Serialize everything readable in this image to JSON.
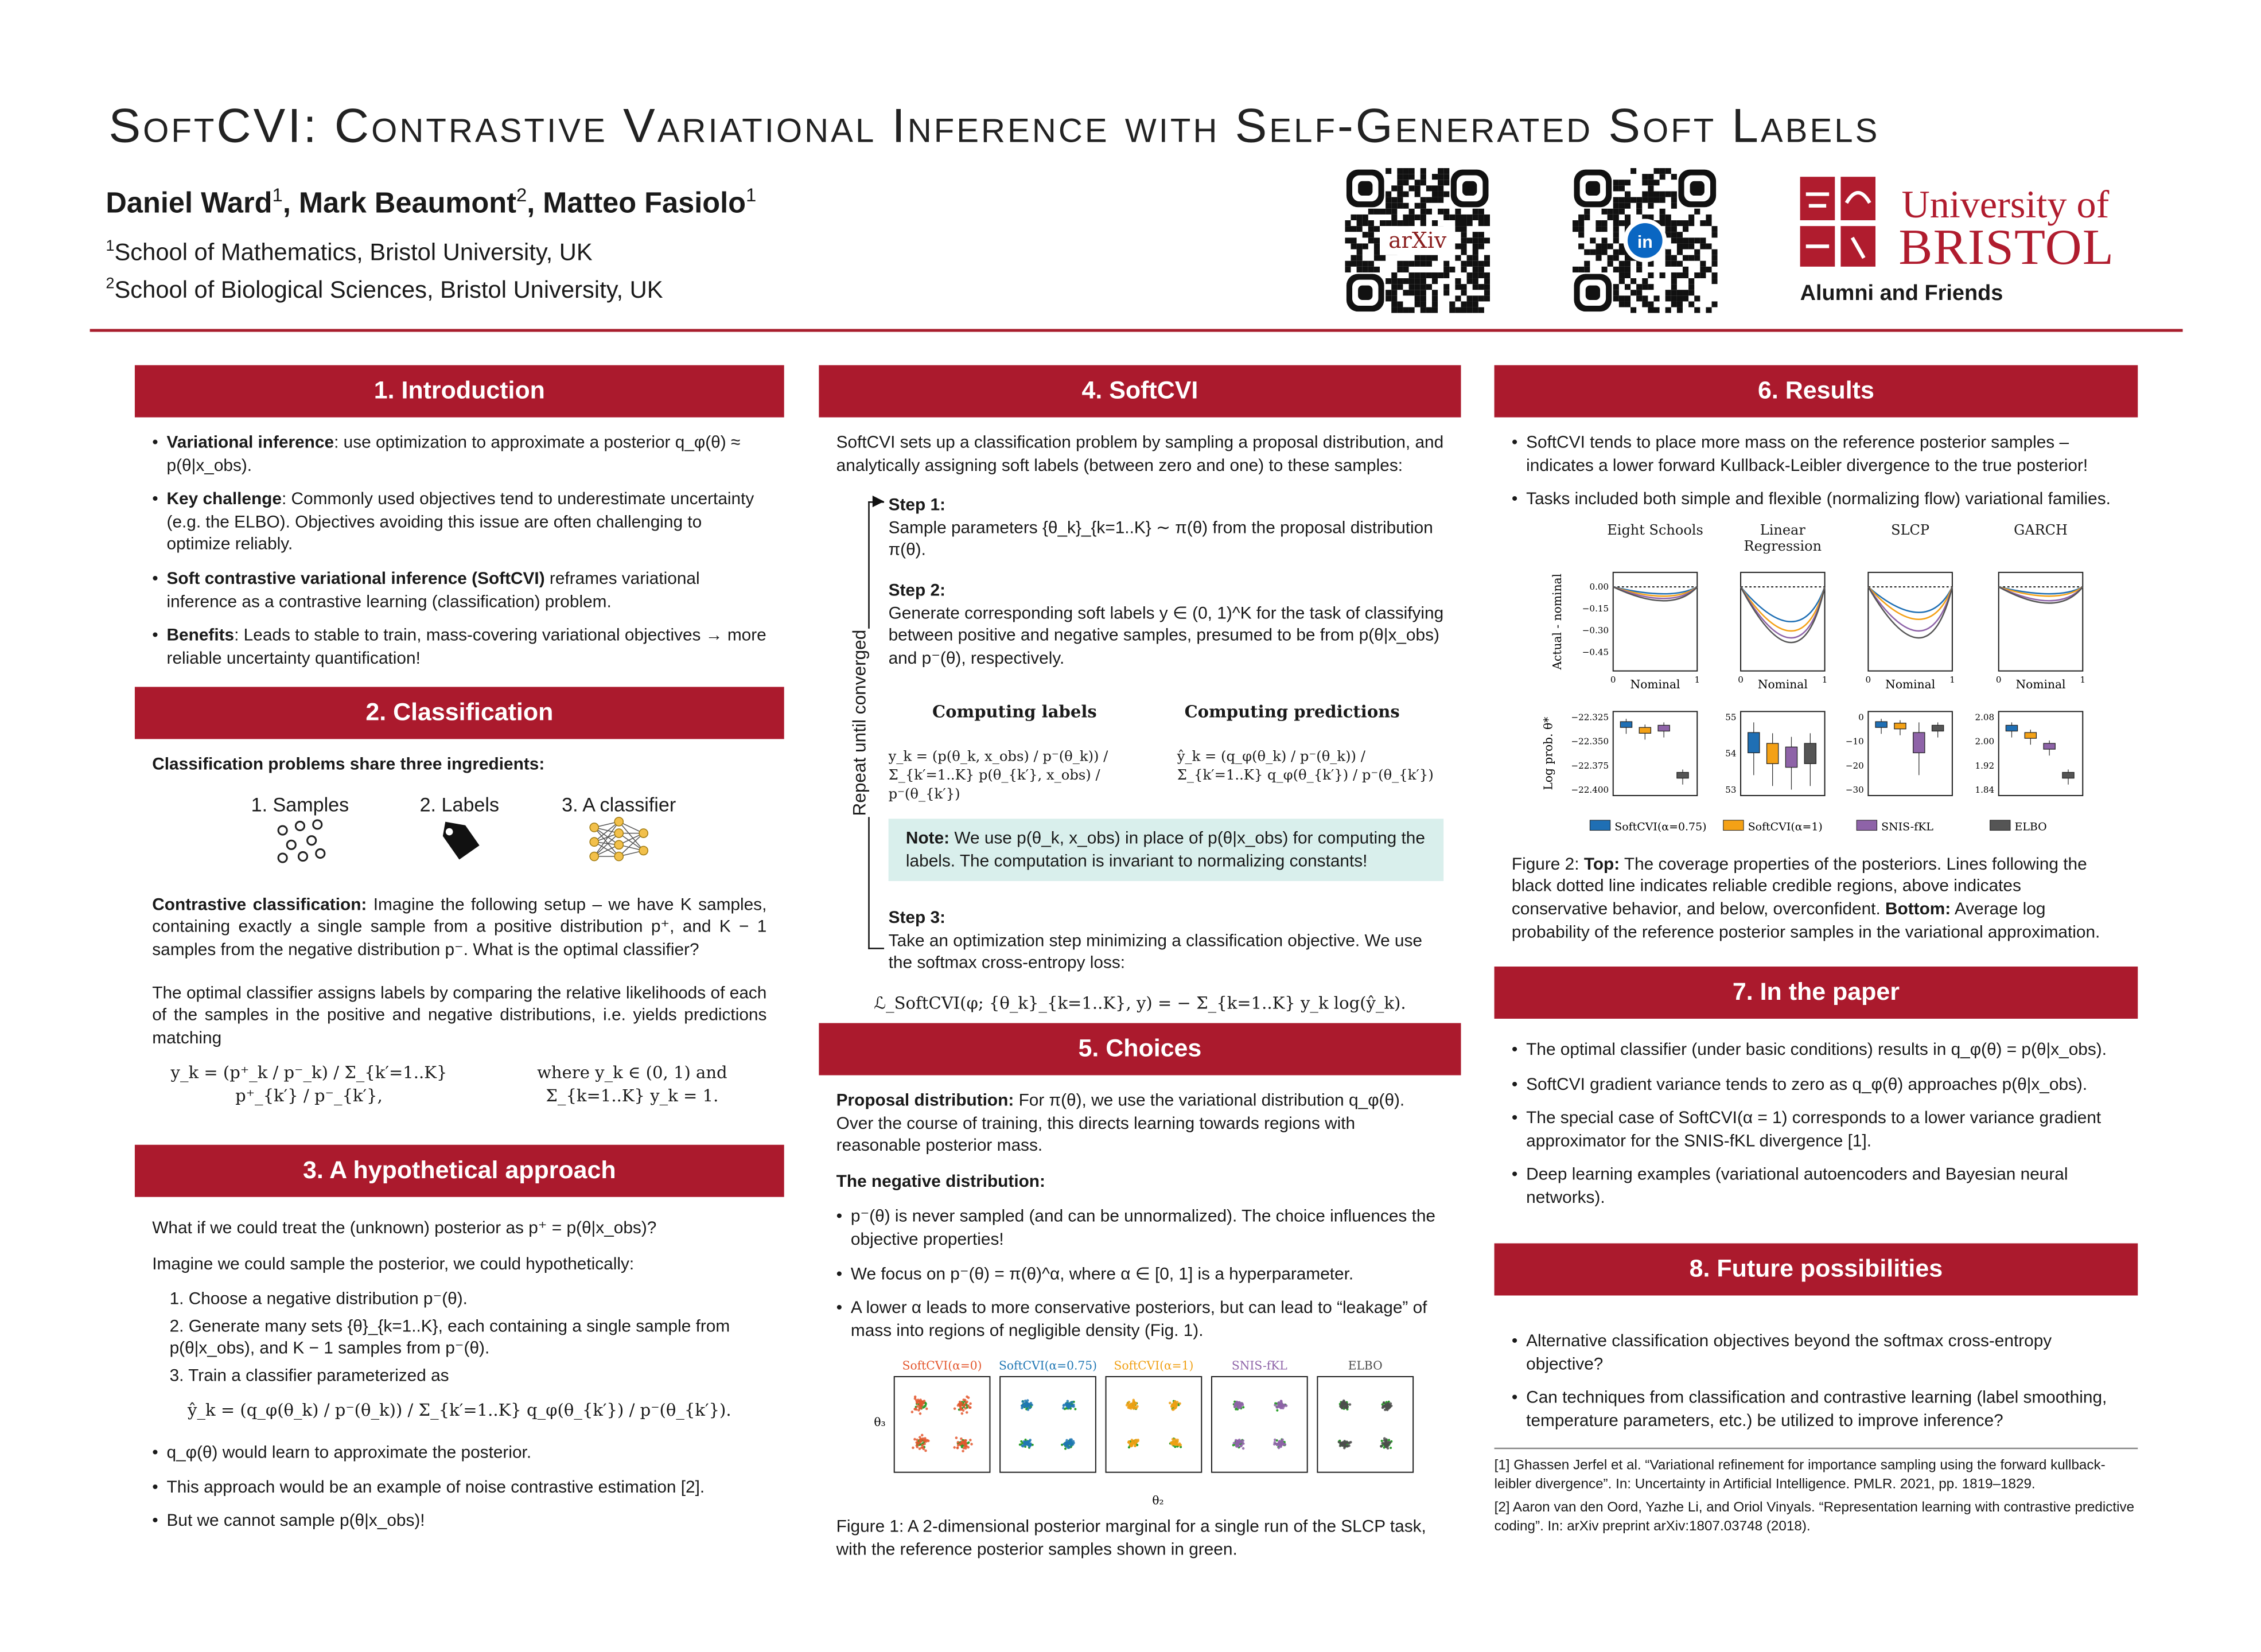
{
  "header": {
    "title": "SoftCVI: Contrastive Variational Inference with Self-Generated Soft Labels",
    "authors": [
      {
        "name": "Daniel Ward",
        "sup": "1"
      },
      {
        "name": ", Mark Beaumont",
        "sup": "2"
      },
      {
        "name": ", Matteo Fasiolo",
        "sup": "1"
      }
    ],
    "affiliations": [
      {
        "sup": "1",
        "text": "School of Mathematics, Bristol University, UK"
      },
      {
        "sup": "2",
        "text": "School of Biological Sciences, Bristol University, UK"
      }
    ],
    "qr_labels": [
      "arXiv",
      "in"
    ],
    "logo": {
      "line1": "University of",
      "line2": "BRISTOL",
      "caption": "Alumni and Friends"
    }
  },
  "intro": {
    "title": "1. Introduction",
    "bullets": [
      {
        "bold": "Variational inference",
        "text": ": use optimization to approximate a posterior q_φ(θ) ≈ p(θ|x_obs)."
      },
      {
        "bold": "Key challenge",
        "text": ": Commonly used objectives tend to underestimate uncertainty (e.g. the ELBO). Objectives avoiding this issue are often challenging to optimize reliably."
      },
      {
        "bold": "Soft contrastive variational inference (SoftCVI)",
        "text": " reframes variational inference as a contrastive learning (classification) problem."
      },
      {
        "bold": "Benefits",
        "text": ": Leads to stable to train, mass-covering variational objectives → more reliable uncertainty quantification!"
      }
    ]
  },
  "classification": {
    "title": "2. Classification",
    "lead": "Classification problems share three ingredients:",
    "ingredients": [
      "1. Samples",
      "2. Labels",
      "3. A classifier"
    ],
    "contrastive": {
      "bold": "Contrastive classification:",
      "text": " Imagine the following setup – we have K samples, containing exactly a single sample from a positive distribution p⁺, and K − 1 samples from the negative distribution p⁻. What is the optimal classifier?"
    },
    "optimal": "The optimal classifier assigns labels by comparing the relative likelihoods of each of the samples in the positive and negative distributions, i.e. yields predictions matching",
    "equation": "y_k = (p⁺_k / p⁻_k) / Σ_{k′=1..K} p⁺_{k′} / p⁻_{k′},",
    "equation_note": "where y_k ∈ (0, 1) and Σ_{k=1..K} y_k = 1."
  },
  "hypothetical": {
    "title": "3. A hypothetical approach",
    "p1": "What if we could treat the (unknown) posterior as p⁺ = p(θ|x_obs)?",
    "p2": "Imagine we could sample the posterior, we could hypothetically:",
    "steps": [
      "1. Choose a negative distribution p⁻(θ).",
      "2. Generate many sets {θ}_{k=1..K}, each containing a single sample from p(θ|x_obs), and K − 1 samples from p⁻(θ).",
      "3. Train a classifier parameterized as"
    ],
    "equation": "ŷ_k = (q_φ(θ_k) / p⁻(θ_k)) / Σ_{k′=1..K} q_φ(θ_{k′}) / p⁻(θ_{k′}).",
    "bullets": [
      "q_φ(θ) would learn to approximate the posterior.",
      "This approach would be an example of noise contrastive estimation [2].",
      "But we cannot sample p(θ|x_obs)!"
    ]
  },
  "softcvi": {
    "title": "4. SoftCVI",
    "intro": "SoftCVI sets up a classification problem by sampling a proposal distribution, and analytically assigning soft labels (between zero and one) to these samples:",
    "loop_label": "Repeat until converged",
    "steps": [
      {
        "label": "Step 1:",
        "text": "Sample parameters {θ_k}_{k=1..K} ∼ π(θ) from the proposal distribution π(θ)."
      },
      {
        "label": "Step 2:",
        "text": "Generate corresponding soft labels y ∈ (0, 1)^K for the task of classifying between positive and negative samples, presumed to be from p(θ|x_obs) and p⁻(θ), respectively."
      },
      {
        "label": "Step 3:",
        "text": "Take an optimization step minimizing a classification objective. We use the softmax cross-entropy loss:"
      }
    ],
    "col_heads": [
      "Computing labels",
      "Computing predictions"
    ],
    "eq_labels": "y_k = (p(θ_k, x_obs) / p⁻(θ_k)) / Σ_{k′=1..K} p(θ_{k′}, x_obs) / p⁻(θ_{k′})",
    "eq_preds": "ŷ_k = (q_φ(θ_k) / p⁻(θ_k)) / Σ_{k′=1..K} q_φ(θ_{k′}) / p⁻(θ_{k′})",
    "note": {
      "bold": "Note:",
      "text": " We use p(θ_k, x_obs) in place of p(θ|x_obs) for computing the labels. The computation is invariant to normalizing constants!"
    },
    "loss": "ℒ_SoftCVI(φ; {θ_k}_{k=1..K}, y) = − Σ_{k=1..K} y_k log(ŷ_k)."
  },
  "choices": {
    "title": "5. Choices",
    "proposal": {
      "bold": "Proposal distribution:",
      "text": " For π(θ), we use the variational distribution q_φ(θ). Over the course of training, this directs learning towards regions with reasonable posterior mass."
    },
    "negative_head": "The negative distribution:",
    "bullets": [
      "p⁻(θ) is never sampled (and can be unnormalized). The choice influences the objective properties!",
      "We focus on p⁻(θ) = π(θ)^α, where α ∈ [0, 1] is a hyperparameter.",
      "A lower α leads to more conservative posteriors, but can lead to “leakage” of mass into regions of negligible density (Fig. 1)."
    ],
    "figure": {
      "panels": [
        {
          "name": "SoftCVI(α=0)",
          "color": "#e4572e"
        },
        {
          "name": "SoftCVI(α=0.75)",
          "color": "#1f77b4"
        },
        {
          "name": "SoftCVI(α=1)",
          "color": "#f0a014"
        },
        {
          "name": "SNIS-fKL",
          "color": "#8e63a8"
        },
        {
          "name": "ELBO",
          "color": "#4d4d4d"
        }
      ],
      "xlabel": "θ₂",
      "ylabel": "θ₃",
      "caption": "Figure 1: A 2-dimensional posterior marginal for a single run of the SLCP task, with the reference posterior samples shown in green."
    }
  },
  "results": {
    "title": "6. Results",
    "bullets": [
      "SoftCVI tends to place more mass on the reference posterior samples – indicates a lower forward Kullback-Leibler divergence to the true posterior!",
      "Tasks included both simple and flexible (normalizing flow) variational families."
    ],
    "figure": {
      "tasks": [
        "Eight Schools",
        "Linear Regression",
        "SLCP",
        "GARCH"
      ],
      "top_ylabel": "Actual - nominal",
      "top_yticks": [
        "0.00",
        "−0.15",
        "−0.30",
        "−0.45"
      ],
      "xlabel": "Nominal",
      "xticks": [
        "0",
        "1"
      ],
      "bottom_ylabel": "Log prob. θ*",
      "bottom_yticks": [
        [
          "−22.325",
          "−22.350",
          "−22.375",
          "−22.400"
        ],
        [
          "55",
          "54",
          "53"
        ],
        [
          "0",
          "−10",
          "−20",
          "−30"
        ],
        [
          "2.08",
          "2.00",
          "1.92",
          "1.84"
        ]
      ],
      "legend": [
        {
          "name": "SoftCVI(α=0.75)",
          "color": "#1f6fb4"
        },
        {
          "name": "SoftCVI(α=1)",
          "color": "#f4a116"
        },
        {
          "name": "SNIS-fKL",
          "color": "#8e63a8"
        },
        {
          "name": "ELBO",
          "color": "#555555"
        }
      ],
      "caption": {
        "label": "Figure 2: ",
        "top_bold": "Top:",
        "top_text": " The coverage properties of the posteriors. Lines following the black dotted line indicates reliable credible regions, above indicates conservative behavior, and below, overconfident. ",
        "bottom_bold": "Bottom:",
        "bottom_text": " Average log probability of the reference posterior samples in the variational approximation."
      }
    }
  },
  "paper": {
    "title": "7. In the paper",
    "bullets": [
      "The optimal classifier (under basic conditions) results in q_φ(θ) = p(θ|x_obs).",
      "SoftCVI gradient variance tends to zero as q_φ(θ) approaches p(θ|x_obs).",
      "The special case of SoftCVI(α = 1) corresponds to a lower variance gradient approximator for the SNIS-fKL divergence [1].",
      "Deep learning examples (variational autoencoders and Bayesian neural networks)."
    ]
  },
  "future": {
    "title": "8. Future possibilities",
    "bullets": [
      "Alternative classification objectives beyond the softmax cross-entropy objective?",
      "Can techniques from classification and contrastive learning (label smoothing, temperature parameters, etc.) be utilized to improve inference?"
    ]
  },
  "references": [
    "[1] Ghassen Jerfel et al. “Variational refinement for importance sampling using the forward kullback-leibler divergence”. In: Uncertainty in Artificial Intelligence. PMLR. 2021, pp. 1819–1829.",
    "[2] Aaron van den Oord, Yazhe Li, and Oriol Vinyals. “Representation learning with contrastive predictive coding”. In: arXiv preprint arXiv:1807.03748 (2018)."
  ]
}
